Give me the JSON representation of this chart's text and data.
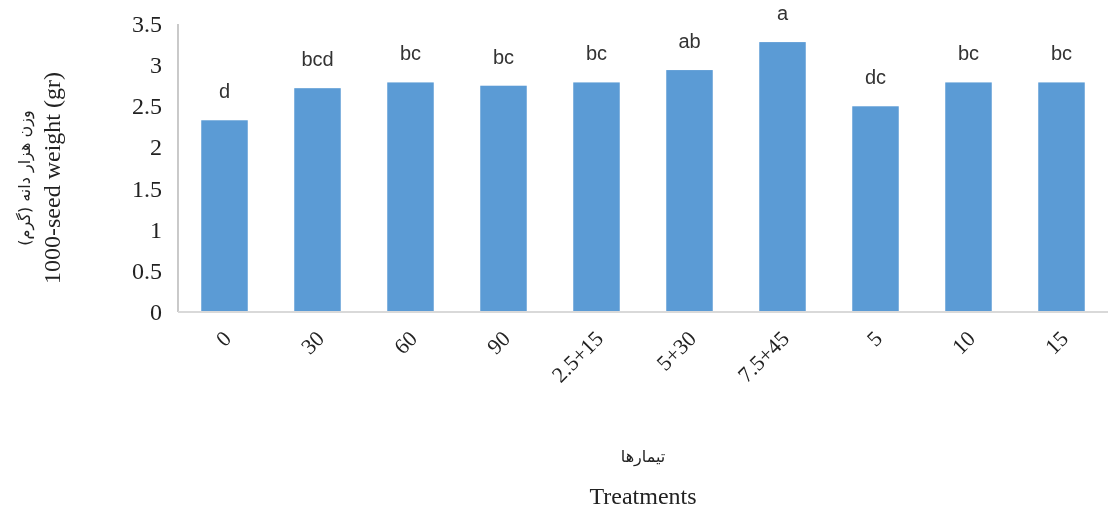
{
  "chart_data": {
    "type": "bar",
    "categories": [
      "0",
      "30",
      "60",
      "90",
      "2.5+15",
      "5+30",
      "7.5+45",
      "5",
      "10",
      "15"
    ],
    "values": [
      2.33,
      2.72,
      2.79,
      2.75,
      2.79,
      2.94,
      3.28,
      2.5,
      2.79,
      2.79
    ],
    "color": "#5b9bd5",
    "ylim": [
      0,
      3.5
    ],
    "yticks": [
      0,
      0.5,
      1,
      1.5,
      2,
      2.5,
      3,
      3.5
    ],
    "ylabel": "وزن هزار دانه (گرم)\n1000-seed weight (gr)",
    "xlabel": "تیمارها\nTreatments",
    "grid": false,
    "annotations": [
      {
        "text": "d",
        "x": "0",
        "y": 2.33
      },
      {
        "text": "bcd",
        "x": "30",
        "y": 2.72
      },
      {
        "text": "bc",
        "x": "60",
        "y": 2.79
      },
      {
        "text": "bc",
        "x": "90",
        "y": 2.75
      },
      {
        "text": "bc",
        "x": "2.5+15",
        "y": 2.79
      },
      {
        "text": "ab",
        "x": "5+30",
        "y": 2.94
      },
      {
        "text": "a",
        "x": "7.5+45",
        "y": 3.28
      },
      {
        "text": "dc",
        "x": "5",
        "y": 2.5
      },
      {
        "text": "bc",
        "x": "10",
        "y": 2.79
      },
      {
        "text": "bc",
        "x": "15",
        "y": 2.79
      }
    ]
  }
}
